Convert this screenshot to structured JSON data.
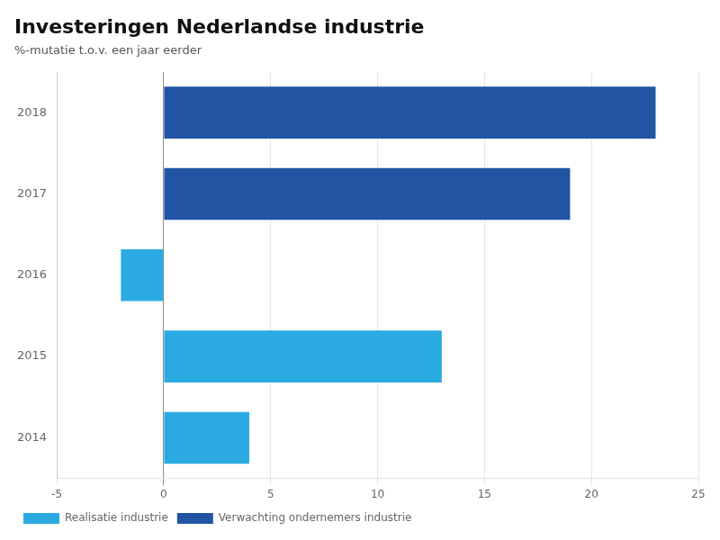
{
  "chart_data": {
    "type": "bar",
    "orientation": "horizontal",
    "title": "Investeringen Nederlandse industrie",
    "subtitle": "%-mutatie t.o.v. een jaar eerder",
    "categories": [
      "2018",
      "2017",
      "2016",
      "2015",
      "2014"
    ],
    "series": [
      {
        "name": "Realisatie industrie",
        "color": "#29ABE2",
        "values": [
          null,
          null,
          -2,
          13,
          4
        ]
      },
      {
        "name": "Verwachting ondernemers industrie",
        "color": "#2155A3",
        "values": [
          23,
          19,
          null,
          null,
          null
        ]
      }
    ],
    "xlim": [
      -5,
      25
    ],
    "xticks": [
      -5,
      0,
      5,
      10,
      15,
      20,
      25
    ],
    "grid": true,
    "legend": "lower left"
  }
}
